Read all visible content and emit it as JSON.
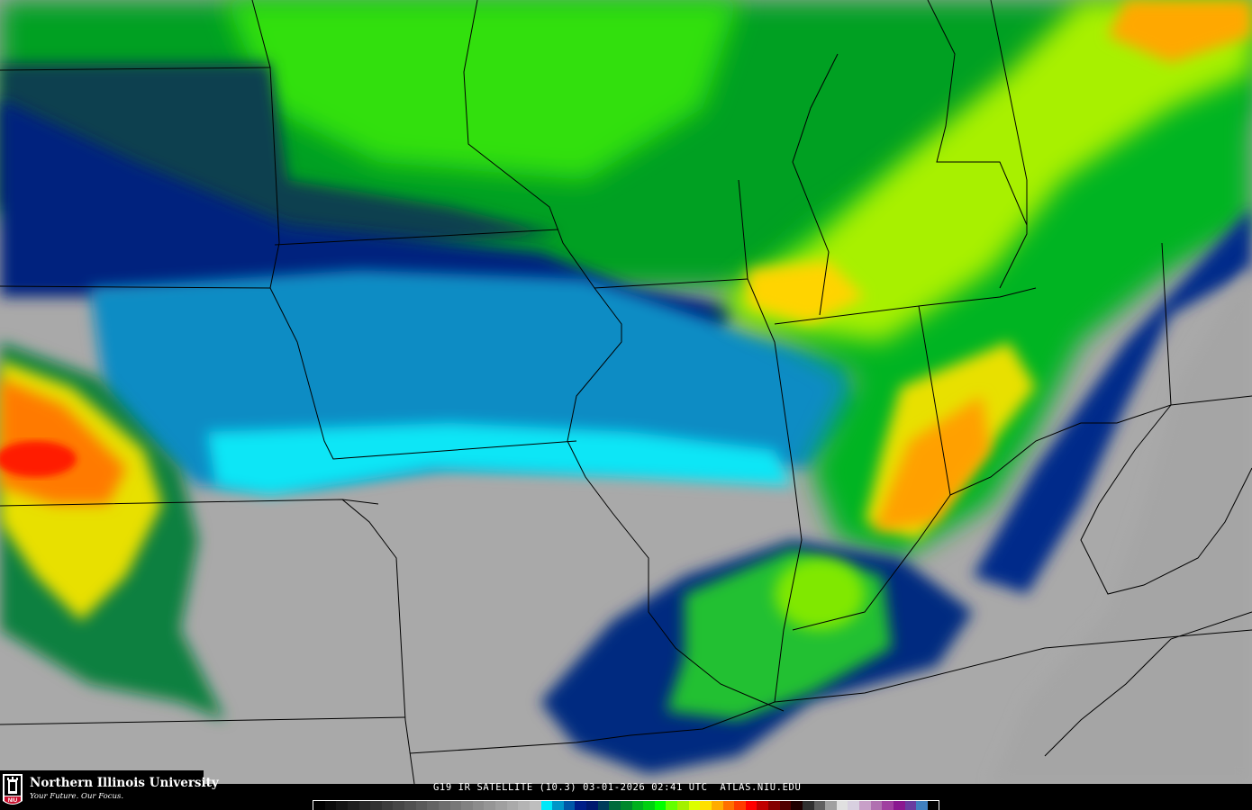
{
  "logo": {
    "name": "Northern Illinois University",
    "tagline": "Your Future. Our Focus.",
    "badge": "NIU",
    "brand_color": "#c8102e"
  },
  "caption": "G19 IR SATELLITE (10.3) 03-01-2026 02:41 UTC  ATLAS.NIU.EDU",
  "map": {
    "product": "IR satellite imagery",
    "boundaries_color": "#000000"
  },
  "colorbar": [
    "#000000",
    "#0a0a0a",
    "#141414",
    "#1e1e1e",
    "#282828",
    "#323232",
    "#3c3c3c",
    "#464646",
    "#505050",
    "#5a5a5a",
    "#646464",
    "#6e6e6e",
    "#787878",
    "#828282",
    "#8c8c8c",
    "#969696",
    "#a0a0a0",
    "#aaaaaa",
    "#b4b4b4",
    "#bebebe",
    "#00e8f8",
    "#0096c8",
    "#0058a8",
    "#001e88",
    "#00186e",
    "#003c5a",
    "#006a3c",
    "#00882c",
    "#00b01e",
    "#00d010",
    "#00ff00",
    "#64ff00",
    "#a4f000",
    "#dcff00",
    "#ffe000",
    "#ffac00",
    "#ff7000",
    "#ff3c00",
    "#ff0000",
    "#c00000",
    "#840000",
    "#500000",
    "#1e0000",
    "#303030",
    "#606060",
    "#a0a0a0",
    "#e0e0e0",
    "#d8d0e0",
    "#c8a0c8",
    "#b070b0",
    "#a040a0",
    "#8a1890",
    "#6a3ca0",
    "#4080c0",
    "#000000"
  ]
}
